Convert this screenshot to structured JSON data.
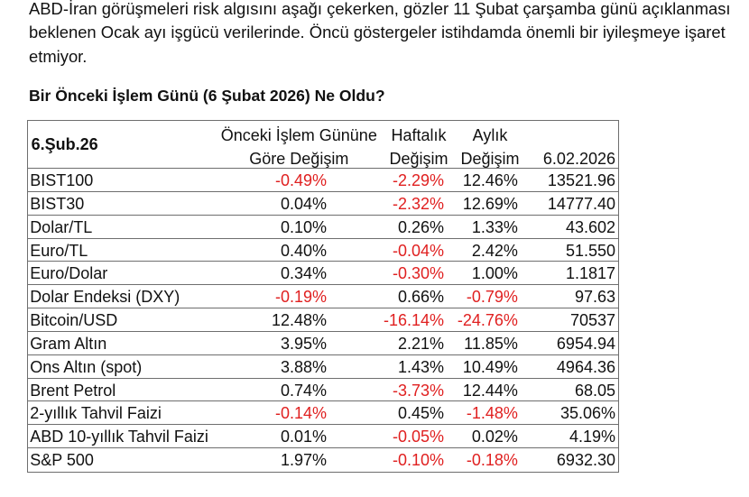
{
  "intro": {
    "lines": [
      "ABD-İran görüşmeleri risk algısını aşağı çekerken, gözler 11 Şubat çarşamba günü açıklanması",
      "beklenen Ocak ayı işgücü verilerinde. Öncü göstergeler istihdamda önemli bir iyileşmeye işaret",
      "etmiyor."
    ]
  },
  "heading": {
    "text": "Bir Önceki İşlem Günü (6 Şubat 2026) Ne Oldu?"
  },
  "table": {
    "date_label": "6.Şub.26",
    "columns": [
      {
        "line1": "Önceki İşlem Gününe",
        "line2": "Göre Değişim"
      },
      {
        "line1": "Haftalık",
        "line2": "Değişim"
      },
      {
        "line1": "Aylık",
        "line2": "Değişim"
      },
      {
        "line1": "",
        "line2": "6.02.2026"
      }
    ],
    "rows": [
      {
        "label": "BIST100",
        "daily": "-0.49%",
        "weekly": "-2.29%",
        "monthly": "12.46%",
        "close": "13521.96"
      },
      {
        "label": "BIST30",
        "daily": "0.04%",
        "weekly": "-2.32%",
        "monthly": "12.69%",
        "close": "14777.40"
      },
      {
        "label": "Dolar/TL",
        "daily": "0.10%",
        "weekly": "0.26%",
        "monthly": "1.33%",
        "close": "43.602"
      },
      {
        "label": "Euro/TL",
        "daily": "0.40%",
        "weekly": "-0.04%",
        "monthly": "2.42%",
        "close": "51.550"
      },
      {
        "label": "Euro/Dolar",
        "daily": "0.34%",
        "weekly": "-0.30%",
        "monthly": "1.00%",
        "close": "1.1817"
      },
      {
        "label": "Dolar Endeksi (DXY)",
        "daily": "-0.19%",
        "weekly": "0.66%",
        "monthly": "-0.79%",
        "close": "97.63"
      },
      {
        "label": "Bitcoin/USD",
        "daily": "12.48%",
        "weekly": "-16.14%",
        "monthly": "-24.76%",
        "close": "70537"
      },
      {
        "label": "Gram Altın",
        "daily": "3.95%",
        "weekly": "2.21%",
        "monthly": "11.85%",
        "close": "6954.94"
      },
      {
        "label": "Ons Altın (spot)",
        "daily": "3.88%",
        "weekly": "1.43%",
        "monthly": "10.49%",
        "close": "4964.36"
      },
      {
        "label": "Brent Petrol",
        "daily": "0.74%",
        "weekly": "-3.73%",
        "monthly": "12.44%",
        "close": "68.05"
      },
      {
        "label": "2-yıllık Tahvil Faizi",
        "daily": "-0.14%",
        "weekly": "0.45%",
        "monthly": "-1.48%",
        "close": "35.06%"
      },
      {
        "label": "ABD 10-yıllık Tahvil Faizi",
        "daily": "0.01%",
        "weekly": "-0.05%",
        "monthly": "0.02%",
        "close": "4.19%"
      },
      {
        "label": "S&P 500",
        "daily": "1.97%",
        "weekly": "-0.10%",
        "monthly": "-0.18%",
        "close": "6932.30"
      }
    ]
  },
  "colors": {
    "negative": "#e02020",
    "text": "#111111",
    "grid": "#6e6e6e"
  },
  "chart_data": {
    "type": "table",
    "title": "Bir Önceki İşlem Günü (6 Şubat 2026) Ne Oldu?",
    "columns": [
      "6.Şub.26",
      "Önceki İşlem Gününe Göre Değişim",
      "Haftalık Değişim",
      "Aylık Değişim",
      "6.02.2026"
    ],
    "rows": [
      [
        "BIST100",
        "-0.49%",
        "-2.29%",
        "12.46%",
        "13521.96"
      ],
      [
        "BIST30",
        "0.04%",
        "-2.32%",
        "12.69%",
        "14777.40"
      ],
      [
        "Dolar/TL",
        "0.10%",
        "0.26%",
        "1.33%",
        "43.602"
      ],
      [
        "Euro/TL",
        "0.40%",
        "-0.04%",
        "2.42%",
        "51.550"
      ],
      [
        "Euro/Dolar",
        "0.34%",
        "-0.30%",
        "1.00%",
        "1.1817"
      ],
      [
        "Dolar Endeksi (DXY)",
        "-0.19%",
        "0.66%",
        "-0.79%",
        "97.63"
      ],
      [
        "Bitcoin/USD",
        "12.48%",
        "-16.14%",
        "-24.76%",
        "70537"
      ],
      [
        "Gram Altın",
        "3.95%",
        "2.21%",
        "11.85%",
        "6954.94"
      ],
      [
        "Ons Altın (spot)",
        "3.88%",
        "1.43%",
        "10.49%",
        "4964.36"
      ],
      [
        "Brent Petrol",
        "0.74%",
        "-3.73%",
        "12.44%",
        "68.05"
      ],
      [
        "2-yıllık Tahvil Faizi",
        "-0.14%",
        "0.45%",
        "-1.48%",
        "35.06%"
      ],
      [
        "ABD 10-yıllık Tahvil Faizi",
        "0.01%",
        "-0.05%",
        "0.02%",
        "4.19%"
      ],
      [
        "S&P 500",
        "1.97%",
        "-0.10%",
        "-0.18%",
        "6932.30"
      ]
    ]
  }
}
